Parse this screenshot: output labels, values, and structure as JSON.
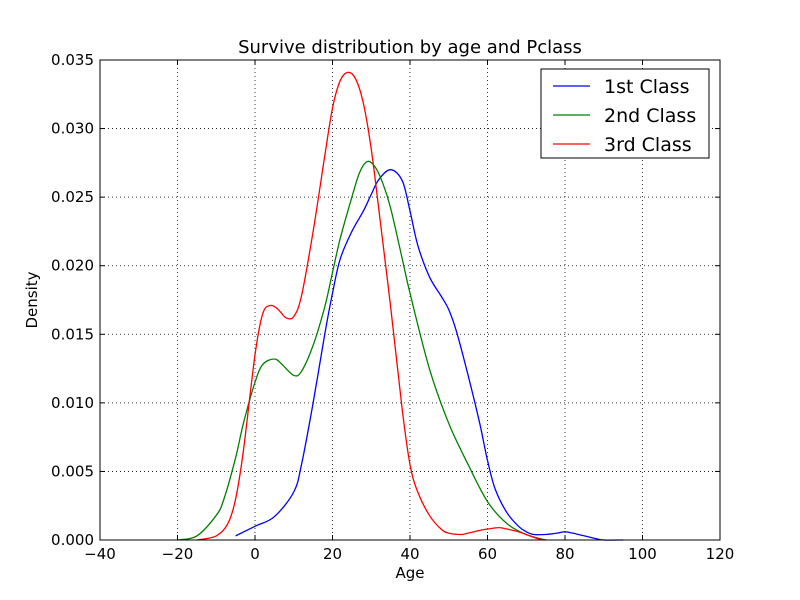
{
  "chart_data": {
    "type": "line",
    "title": "Survive distribution by age and Pclass",
    "xlabel": "Age",
    "ylabel": "Density",
    "xlim": [
      -40,
      120
    ],
    "ylim": [
      0,
      0.035
    ],
    "x_ticks": [
      "−40",
      "−20",
      "0",
      "20",
      "40",
      "60",
      "80",
      "100",
      "120"
    ],
    "y_ticks": [
      "0.000",
      "0.005",
      "0.010",
      "0.015",
      "0.020",
      "0.025",
      "0.030",
      "0.035"
    ],
    "grid": true,
    "legend_position": "top-right",
    "series": [
      {
        "name": "1st Class",
        "color": "#0000ff",
        "x": [
          -5,
          0,
          5,
          10,
          12,
          15,
          18,
          20,
          22,
          25,
          28,
          30,
          32,
          35,
          38,
          40,
          42,
          45,
          48,
          50,
          52,
          55,
          58,
          60,
          62,
          65,
          68,
          70,
          72,
          75,
          78,
          80,
          82,
          85,
          88,
          90,
          95
        ],
        "y": [
          0.0003,
          0.001,
          0.0017,
          0.0035,
          0.0055,
          0.01,
          0.015,
          0.018,
          0.0205,
          0.0225,
          0.024,
          0.0252,
          0.0263,
          0.027,
          0.0262,
          0.024,
          0.0215,
          0.0192,
          0.0178,
          0.0168,
          0.0152,
          0.012,
          0.0085,
          0.0058,
          0.0037,
          0.002,
          0.001,
          0.0006,
          0.0004,
          0.0004,
          0.0005,
          0.0006,
          0.0005,
          0.0003,
          0.0001,
          0.0,
          0.0
        ]
      },
      {
        "name": "2nd Class",
        "color": "#008000",
        "x": [
          -20,
          -15,
          -10,
          -8,
          -5,
          -3,
          0,
          2,
          5,
          7,
          10,
          12,
          15,
          18,
          20,
          22,
          25,
          27,
          29,
          31,
          33,
          35,
          38,
          40,
          45,
          50,
          55,
          60,
          65,
          70,
          75
        ],
        "y": [
          0.0,
          0.0003,
          0.0018,
          0.003,
          0.006,
          0.0085,
          0.0115,
          0.0128,
          0.0132,
          0.0128,
          0.012,
          0.0123,
          0.0142,
          0.017,
          0.0195,
          0.022,
          0.025,
          0.0268,
          0.0276,
          0.0272,
          0.026,
          0.0242,
          0.0205,
          0.018,
          0.0125,
          0.0085,
          0.0055,
          0.0028,
          0.0012,
          0.0004,
          0.0
        ]
      },
      {
        "name": "3rd Class",
        "color": "#ff0000",
        "x": [
          -15,
          -10,
          -7,
          -5,
          -3,
          0,
          2,
          4,
          6,
          8,
          10,
          12,
          15,
          18,
          20,
          22,
          24,
          26,
          28,
          30,
          32,
          35,
          38,
          40,
          42,
          45,
          48,
          50,
          53,
          55,
          58,
          60,
          63,
          65,
          68,
          70,
          73,
          75
        ],
        "y": [
          0.0,
          0.0003,
          0.0012,
          0.003,
          0.0065,
          0.0135,
          0.0165,
          0.0171,
          0.0168,
          0.0162,
          0.0163,
          0.0178,
          0.0225,
          0.028,
          0.0315,
          0.0335,
          0.0341,
          0.0336,
          0.0318,
          0.0285,
          0.024,
          0.017,
          0.0095,
          0.0055,
          0.0035,
          0.0018,
          0.0008,
          0.0005,
          0.0004,
          0.0005,
          0.0007,
          0.0008,
          0.0009,
          0.0008,
          0.0006,
          0.0004,
          0.0001,
          0.0
        ]
      }
    ]
  }
}
